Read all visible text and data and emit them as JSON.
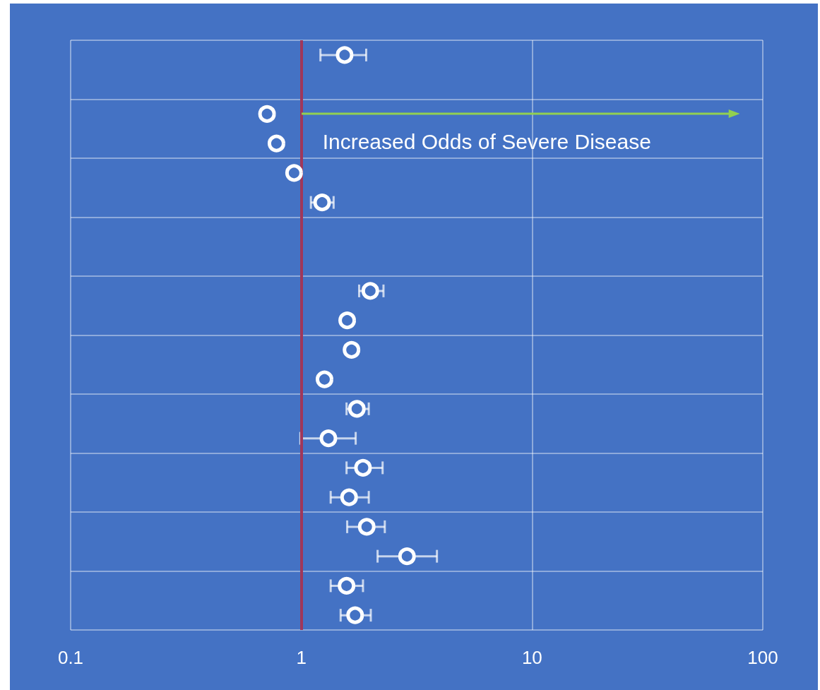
{
  "chart_data": {
    "type": "scatter",
    "orientation": "horizontal",
    "log": "x",
    "grid": true,
    "marker": "circle",
    "color": "#ffffff",
    "categories": [
      null,
      null,
      null,
      null,
      null,
      null,
      null,
      null,
      null,
      null,
      null,
      null,
      null,
      null,
      null,
      null,
      null,
      null,
      null,
      null
    ],
    "values": [
      1.54,
      null,
      0.71,
      0.78,
      0.93,
      1.23,
      null,
      null,
      1.99,
      1.58,
      1.65,
      1.26,
      1.74,
      1.31,
      1.85,
      1.61,
      1.92,
      2.87,
      1.57,
      1.71
    ],
    "errors": [
      [
        1.21,
        1.91
      ],
      null,
      null,
      null,
      null,
      [
        1.1,
        1.38
      ],
      null,
      null,
      [
        1.78,
        2.27
      ],
      null,
      null,
      null,
      [
        1.57,
        1.96
      ],
      [
        0.99,
        1.72
      ],
      [
        1.57,
        2.25
      ],
      [
        1.34,
        1.96
      ],
      [
        1.58,
        2.3
      ],
      [
        2.14,
        3.87
      ],
      [
        1.34,
        1.85
      ],
      [
        1.48,
        2.0
      ]
    ],
    "xlim": [
      0.1,
      100
    ],
    "xticks": [
      0.1,
      1,
      10,
      100
    ],
    "ref_lines": [
      {
        "axis": "x",
        "value": 1,
        "color": "#a0375a"
      }
    ],
    "annotations": [
      "Increased Odds of Severe Disease"
    ]
  }
}
